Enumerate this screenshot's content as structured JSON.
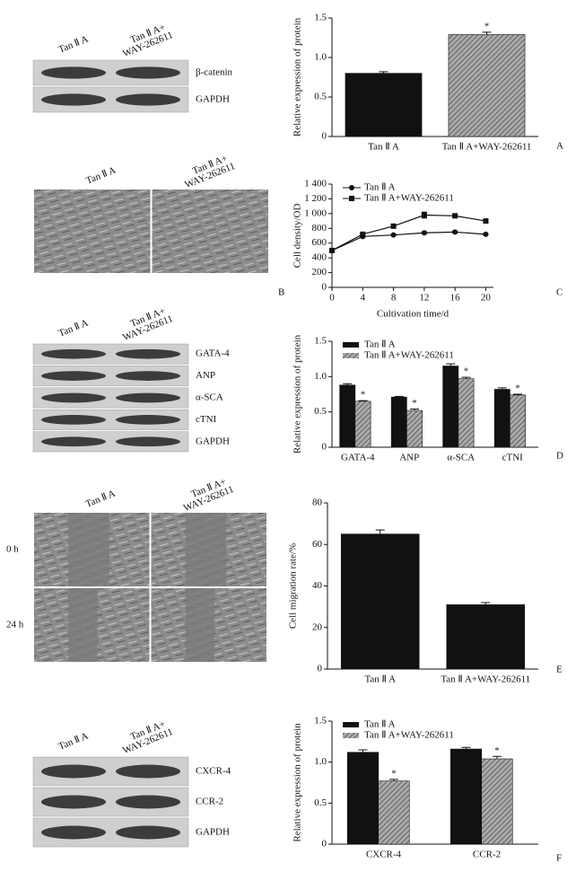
{
  "panel_letters": [
    "A",
    "B",
    "C",
    "D",
    "E",
    "F"
  ],
  "blots": [
    {
      "lanes": [
        [
          "Tan Ⅱ A"
        ],
        [
          "Tan Ⅱ A+",
          "WAY-262611"
        ]
      ],
      "proteins": [
        "β-catenin",
        "GAPDH"
      ]
    },
    {
      "lanes": [
        [
          "Tan Ⅱ A"
        ],
        [
          "Tan Ⅱ A+",
          "WAY-262611"
        ]
      ],
      "proteins": [
        "GATA-4",
        "ANP",
        "α-SCA",
        "cTNI",
        "GAPDH"
      ]
    },
    {
      "lanes": [
        [
          "Tan Ⅱ A"
        ],
        [
          "Tan Ⅱ A+",
          "WAY-262611"
        ]
      ],
      "proteins": [
        "CXCR-4",
        "CCR-2",
        "GAPDH"
      ]
    }
  ],
  "micrographs": [
    {
      "lanes": [
        [
          "Tan Ⅱ A"
        ],
        [
          "Tan Ⅱ A+",
          "WAY-262611"
        ]
      ],
      "rows": []
    },
    {
      "lanes": [
        [
          "Tan Ⅱ A"
        ],
        [
          "Tan Ⅱ A+",
          "WAY-262611"
        ]
      ],
      "rows": [
        "0 h",
        "24 h"
      ]
    }
  ],
  "chart_data": [
    {
      "type": "bar",
      "ylabel": "Relative expression of protein",
      "categories": [
        "Tan Ⅱ A",
        "Tan Ⅱ A+WAY-262611"
      ],
      "values": [
        0.8,
        1.29
      ],
      "errors": [
        0.02,
        0.03
      ],
      "colors": [
        "#111111",
        "#aaaaaa"
      ],
      "annotations": [
        null,
        "*"
      ],
      "ylim": [
        0,
        1.5
      ],
      "yticks": [
        0,
        0.5,
        {
          "value": 1,
          "label": "1.0"
        },
        1.5
      ]
    },
    {
      "type": "line",
      "xlabel": "Cultivation time/d",
      "ylabel": "Cell density/OD",
      "x": [
        0,
        4,
        8,
        12,
        16,
        20
      ],
      "series": [
        {
          "name": "Tan Ⅱ A",
          "color": "#111111",
          "marker": "circle",
          "values": [
            500,
            690,
            710,
            740,
            750,
            720
          ],
          "errors": [
            10,
            10,
            10,
            12,
            12,
            10
          ]
        },
        {
          "name": "Tan Ⅱ A+WAY-262611",
          "color": "#111111",
          "marker": "square",
          "values": [
            500,
            720,
            830,
            980,
            970,
            900
          ],
          "errors": [
            10,
            12,
            15,
            40,
            20,
            15
          ]
        }
      ],
      "xlim": [
        0,
        21
      ],
      "xticks": [
        0,
        4,
        8,
        12,
        16,
        20
      ],
      "ylim": [
        0,
        1400
      ],
      "yticks": [
        0,
        200,
        400,
        600,
        800,
        {
          "value": 1000,
          "label": "1 000"
        },
        {
          "value": 1200,
          "label": "1 200"
        },
        {
          "value": 1400,
          "label": "1 400"
        }
      ],
      "legend": "upper left"
    },
    {
      "type": "bar",
      "ylabel": "Relative expression of protein",
      "categories": [
        "GATA-4",
        "ANP",
        "α-SCA",
        "cTNI"
      ],
      "series": [
        {
          "name": "Tan Ⅱ A",
          "color": "#111111",
          "values": [
            0.88,
            0.71,
            1.15,
            0.82
          ],
          "errors": [
            0.02,
            0.01,
            0.03,
            0.02
          ]
        },
        {
          "name": "Tan Ⅱ A+WAY-262611",
          "color": "#aaaaaa",
          "values": [
            0.65,
            0.52,
            0.97,
            0.74
          ],
          "errors": [
            0.01,
            0.02,
            0.02,
            0.01
          ],
          "annotations": [
            "*",
            "*",
            "*",
            "*"
          ]
        }
      ],
      "ylim": [
        0,
        1.5
      ],
      "yticks": [
        0,
        0.5,
        {
          "value": 1,
          "label": "1.0"
        },
        1.5
      ],
      "legend": "upper left"
    },
    {
      "type": "bar",
      "ylabel": "Cell migration rate/%",
      "categories": [
        "Tan Ⅱ A",
        "Tan Ⅱ A+WAY-262611"
      ],
      "values": [
        65,
        31
      ],
      "errors": [
        2,
        1
      ],
      "colors": [
        "#111111",
        "#111111"
      ],
      "ylim": [
        0,
        80
      ],
      "yticks": [
        0,
        20,
        40,
        60,
        80
      ]
    },
    {
      "type": "bar",
      "ylabel": "Relative expression of protein",
      "categories": [
        "CXCR-4",
        "CCR-2"
      ],
      "series": [
        {
          "name": "Tan Ⅱ A",
          "color": "#111111",
          "values": [
            1.12,
            1.16
          ],
          "errors": [
            0.03,
            0.02
          ]
        },
        {
          "name": "Tan Ⅱ A+WAY-262611",
          "color": "#aaaaaa",
          "values": [
            0.77,
            1.04
          ],
          "errors": [
            0.02,
            0.03
          ],
          "annotations": [
            "*",
            "*"
          ]
        }
      ],
      "ylim": [
        0,
        1.5
      ],
      "yticks": [
        0,
        0.5,
        {
          "value": 1,
          "label": "1.0"
        },
        1.5
      ],
      "legend": "upper left"
    }
  ]
}
